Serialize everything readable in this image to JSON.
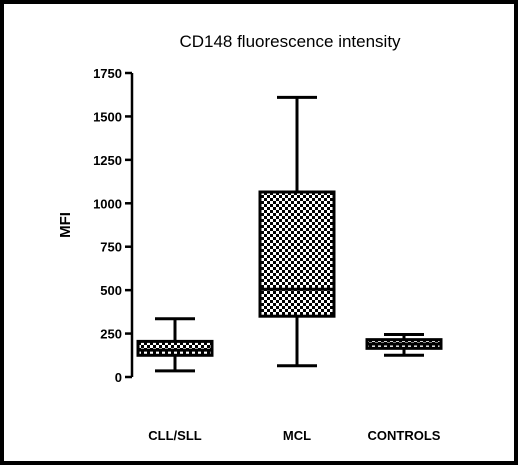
{
  "chart_data": {
    "type": "box",
    "title": "CD148 fluorescence intensity",
    "xlabel": "",
    "ylabel": "MFI",
    "ylim": [
      0,
      1750
    ],
    "yticks": [
      0,
      250,
      500,
      750,
      1000,
      1250,
      1500,
      1750
    ],
    "ytick_labels": [
      "0",
      "250",
      "500",
      "750",
      "1000",
      "1250",
      "1500",
      "1750"
    ],
    "categories": [
      "CLL/SLL",
      "MCL",
      "CONTROLS"
    ],
    "boxes": [
      {
        "category": "CLL/SLL",
        "min": 35,
        "q1": 125,
        "median": 155,
        "q3": 205,
        "max": 335
      },
      {
        "category": "MCL",
        "min": 65,
        "q1": 350,
        "median": 505,
        "q3": 1065,
        "max": 1610
      },
      {
        "category": "CONTROLS",
        "min": 125,
        "q1": 165,
        "median": 190,
        "q3": 215,
        "max": 245
      }
    ],
    "box_fill": "checkered",
    "colors": {
      "ink": "#000000",
      "fill_light": "#ffffff",
      "fill_dark": "#000000"
    },
    "grid": false,
    "legend": "none"
  }
}
